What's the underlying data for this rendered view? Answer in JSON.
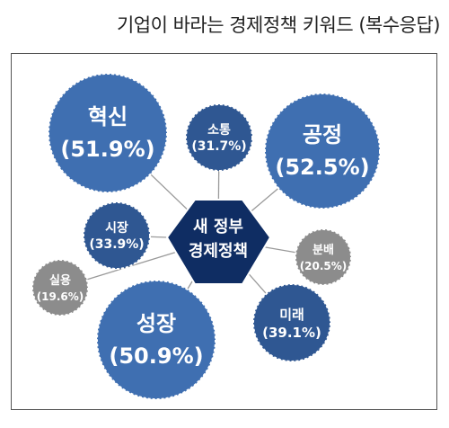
{
  "title": "기업이 바라는 경제정책 키워드 (복수응답)",
  "center": {
    "line1": "새 정부",
    "line2": "경제정책",
    "color": "#0f2d63"
  },
  "nodes": [
    {
      "key": "innovation",
      "name": "혁신",
      "value": "(51.9%)",
      "pct": 51.9,
      "color": "#3f6fb1"
    },
    {
      "key": "communication",
      "name": "소통",
      "value": "(31.7%)",
      "pct": 31.7,
      "color": "#2f5792"
    },
    {
      "key": "fairness",
      "name": "공정",
      "value": "(52.5%)",
      "pct": 52.5,
      "color": "#3f6fb1"
    },
    {
      "key": "market",
      "name": "시장",
      "value": "(33.9%)",
      "pct": 33.9,
      "color": "#2f5792"
    },
    {
      "key": "distribution",
      "name": "분배",
      "value": "(20.5%)",
      "pct": 20.5,
      "color": "#8c8c8c"
    },
    {
      "key": "practicality",
      "name": "실용",
      "value": "(19.6%)",
      "pct": 19.6,
      "color": "#8c8c8c"
    },
    {
      "key": "growth",
      "name": "성장",
      "value": "(50.9%)",
      "pct": 50.9,
      "color": "#3f6fb1"
    },
    {
      "key": "future",
      "name": "미래",
      "value": "(39.1%)",
      "pct": 39.1,
      "color": "#2f5792"
    }
  ]
}
